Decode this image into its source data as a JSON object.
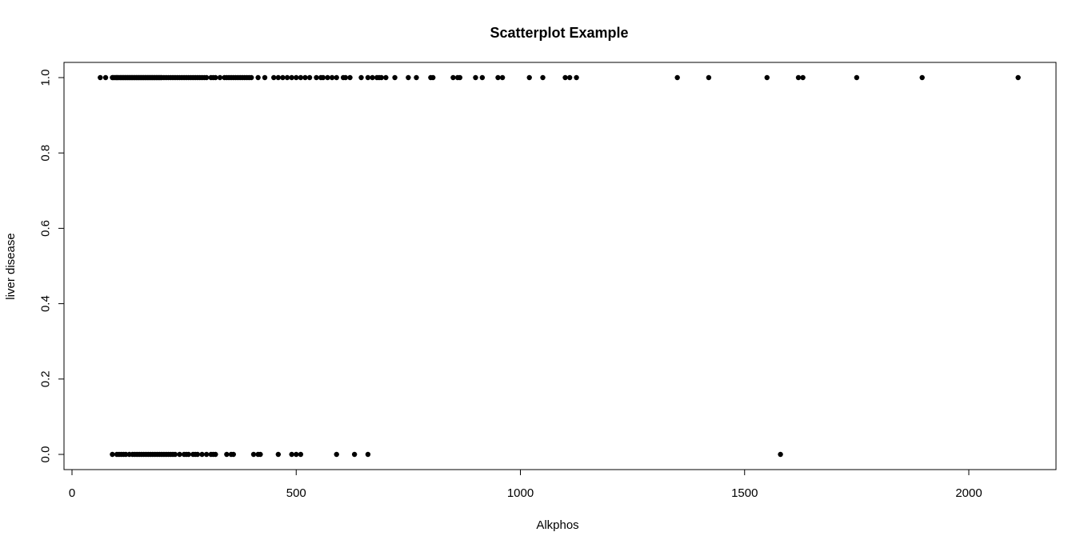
{
  "chart_data": {
    "type": "scatter",
    "title": "Scatterplot Example",
    "xlabel": "Alkphos",
    "ylabel": "liver disease",
    "xlim": [
      0,
      2200
    ],
    "ylim": [
      0,
      1.0
    ],
    "x_ticks": [
      0,
      500,
      1000,
      1500,
      2000
    ],
    "y_ticks": [
      0.0,
      0.2,
      0.4,
      0.6,
      0.8,
      1.0
    ],
    "x_tick_labels": [
      "0",
      "500",
      "1000",
      "1500",
      "2000"
    ],
    "y_tick_labels": [
      "0.0",
      "0.2",
      "0.4",
      "0.6",
      "0.8",
      "1.0"
    ],
    "grid": false,
    "marker_color": "#000000",
    "series": [
      {
        "x": [
          63,
          75,
          90,
          92,
          95,
          98,
          100,
          102,
          105,
          108,
          110,
          113,
          115,
          118,
          120,
          123,
          125,
          128,
          130,
          133,
          135,
          138,
          140,
          143,
          145,
          148,
          150,
          153,
          155,
          158,
          160,
          163,
          165,
          168,
          170,
          173,
          175,
          178,
          180,
          183,
          185,
          188,
          190,
          193,
          195,
          198,
          200,
          205,
          210,
          215,
          220,
          225,
          230,
          235,
          240,
          245,
          250,
          255,
          260,
          265,
          270,
          275,
          280,
          285,
          290,
          295,
          300,
          310,
          315,
          320,
          330,
          340,
          345,
          350,
          355,
          360,
          365,
          370,
          375,
          380,
          385,
          390,
          395,
          400,
          415,
          430,
          450,
          460,
          470,
          480,
          490,
          500,
          510,
          520,
          530,
          545,
          555,
          560,
          570,
          580,
          590,
          605,
          610,
          620,
          645,
          660,
          670,
          680,
          685,
          690,
          700,
          720,
          750,
          768,
          800,
          805,
          850,
          860,
          865,
          900,
          915,
          950,
          960,
          1020,
          1050,
          1100,
          1110,
          1125,
          1350,
          1420,
          1550,
          1620,
          1630,
          1750,
          1896,
          2110
        ],
        "y": [
          1,
          1,
          1,
          1,
          1,
          1,
          1,
          1,
          1,
          1,
          1,
          1,
          1,
          1,
          1,
          1,
          1,
          1,
          1,
          1,
          1,
          1,
          1,
          1,
          1,
          1,
          1,
          1,
          1,
          1,
          1,
          1,
          1,
          1,
          1,
          1,
          1,
          1,
          1,
          1,
          1,
          1,
          1,
          1,
          1,
          1,
          1,
          1,
          1,
          1,
          1,
          1,
          1,
          1,
          1,
          1,
          1,
          1,
          1,
          1,
          1,
          1,
          1,
          1,
          1,
          1,
          1,
          1,
          1,
          1,
          1,
          1,
          1,
          1,
          1,
          1,
          1,
          1,
          1,
          1,
          1,
          1,
          1,
          1,
          1,
          1,
          1,
          1,
          1,
          1,
          1,
          1,
          1,
          1,
          1,
          1,
          1,
          1,
          1,
          1,
          1,
          1,
          1,
          1,
          1,
          1,
          1,
          1,
          1,
          1,
          1,
          1,
          1,
          1,
          1,
          1,
          1,
          1,
          1,
          1,
          1,
          1,
          1,
          1,
          1,
          1,
          1,
          1,
          1,
          1,
          1,
          1,
          1,
          1,
          1,
          1
        ]
      },
      {
        "x": [
          90,
          100,
          105,
          110,
          115,
          120,
          128,
          135,
          140,
          145,
          150,
          155,
          160,
          165,
          170,
          175,
          180,
          185,
          190,
          195,
          200,
          205,
          210,
          215,
          220,
          225,
          230,
          240,
          250,
          255,
          260,
          270,
          275,
          280,
          290,
          300,
          310,
          315,
          320,
          345,
          355,
          360,
          405,
          415,
          420,
          460,
          490,
          500,
          510,
          590,
          630,
          660,
          1580
        ],
        "y": [
          0,
          0,
          0,
          0,
          0,
          0,
          0,
          0,
          0,
          0,
          0,
          0,
          0,
          0,
          0,
          0,
          0,
          0,
          0,
          0,
          0,
          0,
          0,
          0,
          0,
          0,
          0,
          0,
          0,
          0,
          0,
          0,
          0,
          0,
          0,
          0,
          0,
          0,
          0,
          0,
          0,
          0,
          0,
          0,
          0,
          0,
          0,
          0,
          0,
          0,
          0,
          0,
          0
        ]
      }
    ]
  }
}
